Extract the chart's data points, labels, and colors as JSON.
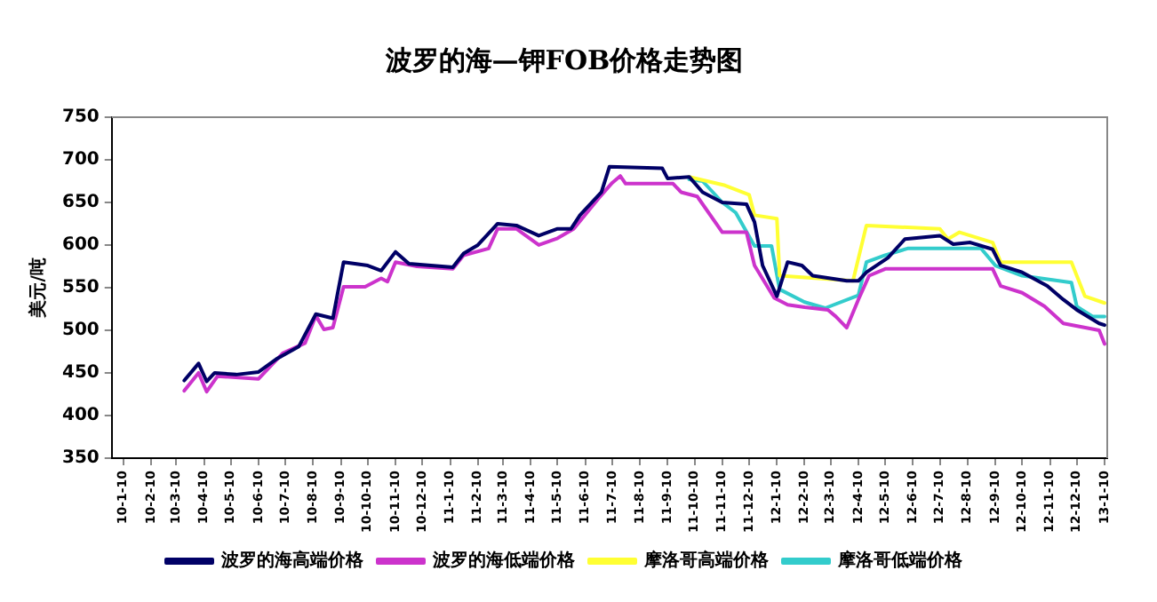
{
  "chart_data": {
    "type": "line",
    "title": "波罗的海—钾FOB价格走势图",
    "ylabel": "美元/吨",
    "xlim": [
      "2009-12-28",
      "2013-01-13"
    ],
    "xticks": [
      {
        "value": "2010-01-10",
        "label": "10-1-10"
      },
      {
        "value": "2010-02-10",
        "label": "10-2-10"
      },
      {
        "value": "2010-03-10",
        "label": "10-3-10"
      },
      {
        "value": "2010-04-10",
        "label": "10-4-10"
      },
      {
        "value": "2010-05-10",
        "label": "10-5-10"
      },
      {
        "value": "2010-06-10",
        "label": "10-6-10"
      },
      {
        "value": "2010-07-10",
        "label": "10-7-10"
      },
      {
        "value": "2010-08-10",
        "label": "10-8-10"
      },
      {
        "value": "2010-09-10",
        "label": "10-9-10"
      },
      {
        "value": "2010-10-10",
        "label": "10-10-10"
      },
      {
        "value": "2010-11-10",
        "label": "10-11-10"
      },
      {
        "value": "2010-12-10",
        "label": "10-12-10"
      },
      {
        "value": "2011-01-10",
        "label": "11-1-10"
      },
      {
        "value": "2011-02-10",
        "label": "11-2-10"
      },
      {
        "value": "2011-03-10",
        "label": "11-3-10"
      },
      {
        "value": "2011-04-10",
        "label": "11-4-10"
      },
      {
        "value": "2011-05-10",
        "label": "11-5-10"
      },
      {
        "value": "2011-06-10",
        "label": "11-6-10"
      },
      {
        "value": "2011-07-10",
        "label": "11-7-10"
      },
      {
        "value": "2011-08-10",
        "label": "11-8-10"
      },
      {
        "value": "2011-09-10",
        "label": "11-9-10"
      },
      {
        "value": "2011-10-10",
        "label": "11-10-10"
      },
      {
        "value": "2011-11-10",
        "label": "11-11-10"
      },
      {
        "value": "2011-12-10",
        "label": "11-12-10"
      },
      {
        "value": "2012-01-10",
        "label": "12-1-10"
      },
      {
        "value": "2012-02-10",
        "label": "12-2-10"
      },
      {
        "value": "2012-03-10",
        "label": "12-3-10"
      },
      {
        "value": "2012-04-10",
        "label": "12-4-10"
      },
      {
        "value": "2012-05-10",
        "label": "12-5-10"
      },
      {
        "value": "2012-06-10",
        "label": "12-6-10"
      },
      {
        "value": "2012-07-10",
        "label": "12-7-10"
      },
      {
        "value": "2012-08-10",
        "label": "12-8-10"
      },
      {
        "value": "2012-09-10",
        "label": "12-9-10"
      },
      {
        "value": "2012-10-10",
        "label": "12-10-10"
      },
      {
        "value": "2012-11-10",
        "label": "12-11-10"
      },
      {
        "value": "2012-12-10",
        "label": "12-12-10"
      },
      {
        "value": "2013-01-10",
        "label": "13-1-10"
      }
    ],
    "ylim": [
      350,
      750
    ],
    "yticks": [
      350,
      400,
      450,
      500,
      550,
      600,
      650,
      700,
      750
    ],
    "grid": false,
    "legend": "bottom",
    "marker": "none",
    "line_style": "solid",
    "series": [
      {
        "name": "波罗的海高端价格",
        "color": "#000066",
        "x": [
          "2010-03-19",
          "2010-04-04",
          "2010-04-13",
          "2010-04-22",
          "2010-05-16",
          "2010-06-10",
          "2010-07-01",
          "2010-07-25",
          "2010-08-13",
          "2010-09-01",
          "2010-09-13",
          "2010-10-10",
          "2010-10-25",
          "2010-11-10",
          "2010-11-25",
          "2011-01-13",
          "2011-01-25",
          "2011-02-10",
          "2011-03-04",
          "2011-03-25",
          "2011-04-19",
          "2011-05-10",
          "2011-05-25",
          "2011-06-04",
          "2011-06-28",
          "2011-07-07",
          "2011-09-04",
          "2011-09-10",
          "2011-10-04",
          "2011-10-19",
          "2011-11-10",
          "2011-12-07",
          "2011-12-16",
          "2011-12-25",
          "2012-01-10",
          "2012-01-22",
          "2012-02-07",
          "2012-02-19",
          "2012-03-28",
          "2012-04-10",
          "2012-04-19",
          "2012-05-13",
          "2012-06-01",
          "2012-07-10",
          "2012-07-25",
          "2012-08-13",
          "2012-09-07",
          "2012-09-16",
          "2012-10-10",
          "2012-11-07",
          "2012-11-25",
          "2012-12-10",
          "2013-01-04",
          "2013-01-10"
        ],
        "values": [
          441,
          461,
          440,
          450,
          448,
          451,
          467,
          481,
          519,
          514,
          580,
          576,
          570,
          592,
          578,
          574,
          590,
          600,
          625,
          623,
          611,
          619,
          619,
          635,
          662,
          692,
          690,
          678,
          680,
          662,
          650,
          648,
          627,
          576,
          540,
          580,
          576,
          564,
          558,
          558,
          568,
          585,
          607,
          611,
          601,
          603,
          595,
          576,
          568,
          552,
          536,
          524,
          508,
          506
        ]
      },
      {
        "name": "波罗的海低端价格",
        "color": "#cc33cc",
        "x": [
          "2010-03-19",
          "2010-04-04",
          "2010-04-13",
          "2010-04-25",
          "2010-06-10",
          "2010-07-07",
          "2010-08-01",
          "2010-08-13",
          "2010-08-22",
          "2010-09-01",
          "2010-09-13",
          "2010-10-07",
          "2010-10-25",
          "2010-11-01",
          "2010-11-10",
          "2010-12-04",
          "2011-01-13",
          "2011-01-25",
          "2011-02-22",
          "2011-03-04",
          "2011-03-25",
          "2011-04-19",
          "2011-05-10",
          "2011-05-28",
          "2011-06-25",
          "2011-07-10",
          "2011-07-19",
          "2011-07-25",
          "2011-09-16",
          "2011-09-25",
          "2011-10-13",
          "2011-11-10",
          "2011-12-07",
          "2011-12-16",
          "2012-01-07",
          "2012-01-22",
          "2012-02-10",
          "2012-03-07",
          "2012-03-16",
          "2012-03-28",
          "2012-04-10",
          "2012-04-22",
          "2012-05-10",
          "2012-09-07",
          "2012-09-16",
          "2012-10-10",
          "2012-11-04",
          "2012-11-25",
          "2013-01-04",
          "2013-01-10"
        ],
        "values": [
          429,
          450,
          428,
          446,
          443,
          473,
          485,
          517,
          501,
          503,
          551,
          551,
          561,
          557,
          580,
          575,
          572,
          588,
          596,
          619,
          619,
          600,
          608,
          619,
          655,
          673,
          681,
          672,
          672,
          662,
          657,
          615,
          615,
          576,
          538,
          530,
          527,
          524,
          516,
          503,
          536,
          564,
          572,
          572,
          552,
          544,
          528,
          508,
          500,
          484
        ]
      },
      {
        "name": "摩洛哥高端价格",
        "color": "#ffff33",
        "x": [
          "2011-10-04",
          "2011-11-13",
          "2011-12-10",
          "2011-12-16",
          "2012-01-10",
          "2012-01-13",
          "2012-04-04",
          "2012-04-19",
          "2012-07-10",
          "2012-07-19",
          "2012-08-01",
          "2012-09-07",
          "2012-09-16",
          "2012-12-04",
          "2012-12-19",
          "2013-01-10"
        ],
        "values": [
          680,
          670,
          659,
          635,
          631,
          564,
          558,
          623,
          619,
          607,
          615,
          603,
          580,
          580,
          540,
          532
        ]
      },
      {
        "name": "摩洛哥低端价格",
        "color": "#33cccc",
        "x": [
          "2011-10-04",
          "2011-10-19",
          "2011-11-10",
          "2011-11-25",
          "2011-12-16",
          "2012-01-04",
          "2012-01-13",
          "2012-02-10",
          "2012-03-04",
          "2012-04-10",
          "2012-04-19",
          "2012-05-10",
          "2012-06-04",
          "2012-08-25",
          "2012-09-10",
          "2012-10-10",
          "2012-12-04",
          "2012-12-10",
          "2012-12-28",
          "2013-01-10"
        ],
        "values": [
          677,
          675,
          650,
          638,
          599,
          599,
          548,
          533,
          526,
          541,
          580,
          588,
          596,
          596,
          576,
          564,
          556,
          528,
          516,
          516
        ]
      }
    ]
  }
}
